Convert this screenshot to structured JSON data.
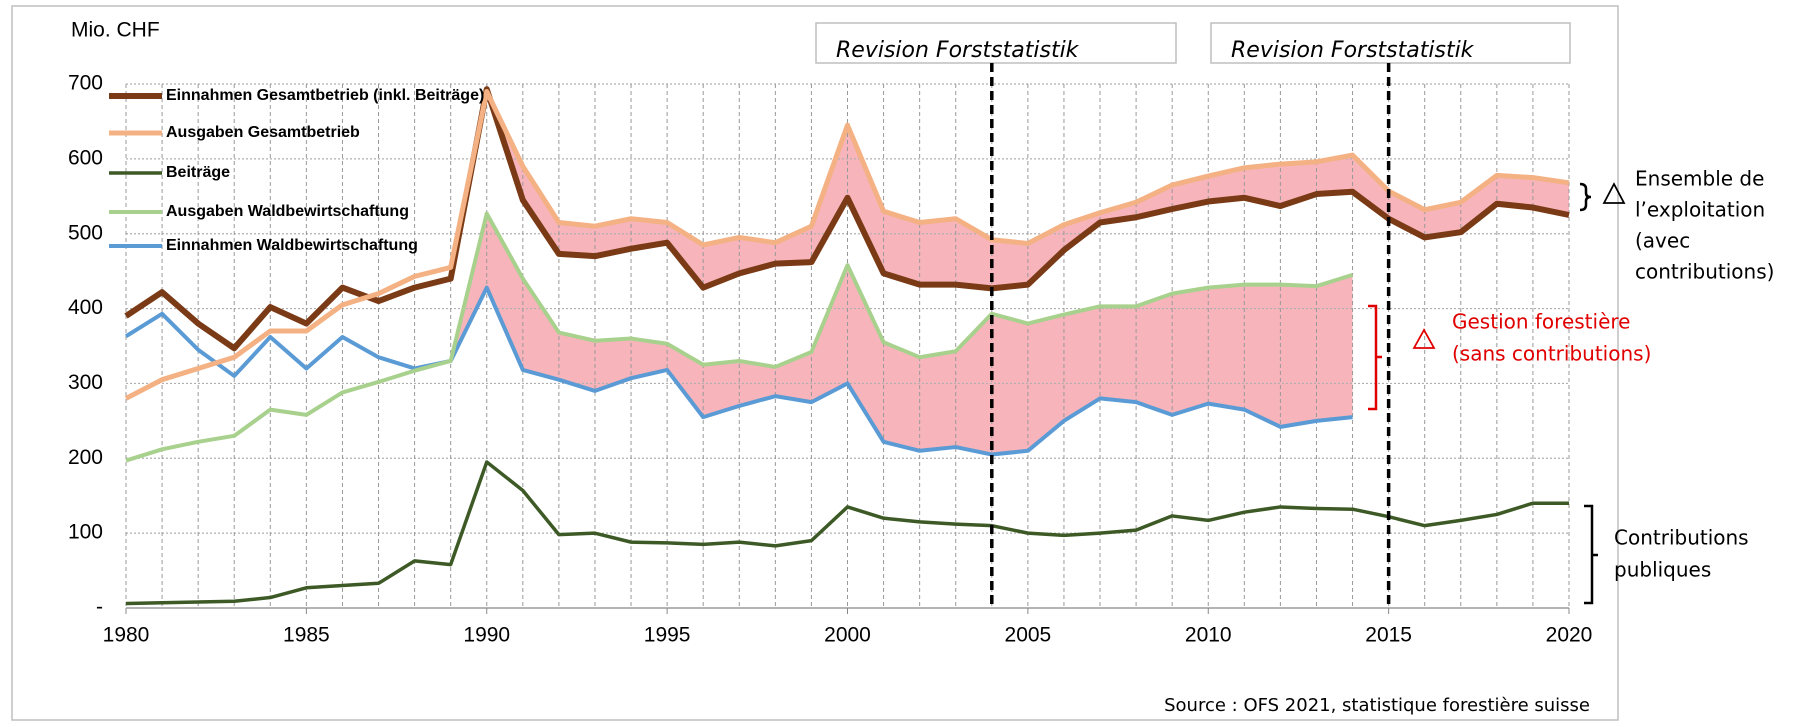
{
  "chart_data": {
    "type": "line",
    "y_label": "Mio. CHF",
    "x": [
      1980,
      1981,
      1982,
      1983,
      1984,
      1985,
      1986,
      1987,
      1988,
      1989,
      1990,
      1991,
      1992,
      1993,
      1994,
      1995,
      1996,
      1997,
      1998,
      1999,
      2000,
      2001,
      2002,
      2003,
      2004,
      2005,
      2006,
      2007,
      2008,
      2009,
      2010,
      2011,
      2012,
      2013,
      2014,
      2015,
      2016,
      2017,
      2018,
      2019,
      2020
    ],
    "xlim": [
      1980,
      2020
    ],
    "xticks": [
      1980,
      1985,
      1990,
      1995,
      2000,
      2005,
      2010,
      2015,
      2020
    ],
    "ylim": [
      0,
      700
    ],
    "yticks": [
      {
        "value": 0,
        "label": "-"
      },
      100,
      200,
      300,
      400,
      500,
      600,
      700
    ],
    "grid": true,
    "series": [
      {
        "name": "Einnahmen Gesamtbetrieb (inkl. Beiträge)",
        "color": "#7b3a16",
        "values": [
          390,
          422,
          380,
          347,
          402,
          380,
          428,
          410,
          428,
          440,
          693,
          545,
          473,
          470,
          480,
          488,
          428,
          447,
          460,
          462,
          548,
          447,
          432,
          432,
          427,
          432,
          478,
          515,
          522,
          533,
          543,
          548,
          537,
          553,
          556,
          520,
          495,
          502,
          540,
          535,
          525
        ]
      },
      {
        "name": "Ausgaben Gesamtbetrieb",
        "color": "#f4b183",
        "values": [
          280,
          305,
          320,
          335,
          370,
          370,
          405,
          420,
          443,
          455,
          690,
          590,
          515,
          510,
          520,
          515,
          485,
          495,
          488,
          510,
          645,
          530,
          515,
          520,
          492,
          487,
          512,
          528,
          542,
          565,
          577,
          588,
          593,
          596,
          605,
          557,
          532,
          542,
          578,
          575,
          568
        ]
      },
      {
        "name": "Beiträge",
        "color": "#3d5a26",
        "values": [
          6,
          7,
          8,
          9,
          14,
          27,
          30,
          33,
          63,
          58,
          195,
          157,
          98,
          100,
          88,
          87,
          85,
          88,
          83,
          90,
          135,
          120,
          115,
          112,
          110,
          100,
          97,
          100,
          104,
          123,
          117,
          128,
          135,
          133,
          132,
          122,
          110,
          117,
          125,
          140,
          140
        ]
      },
      {
        "name": "Ausgaben Waldbewirtschaftung",
        "color": "#a9d18e",
        "values": [
          197,
          212,
          222,
          230,
          265,
          258,
          288,
          302,
          317,
          330,
          527,
          440,
          368,
          357,
          360,
          353,
          325,
          330,
          322,
          342,
          458,
          355,
          335,
          343,
          393,
          380,
          392,
          403,
          403,
          420,
          428,
          432,
          432,
          430,
          445,
          null,
          null,
          null,
          null,
          null,
          null
        ]
      },
      {
        "name": "Einnahmen Waldbewirtschaftung",
        "color": "#5b9bd5",
        "values": [
          363,
          393,
          345,
          310,
          362,
          320,
          362,
          335,
          320,
          330,
          428,
          318,
          305,
          290,
          307,
          318,
          255,
          270,
          283,
          275,
          300,
          222,
          210,
          215,
          205,
          210,
          250,
          280,
          275,
          258,
          273,
          265,
          242,
          250,
          255,
          null,
          null,
          null,
          null,
          null,
          null
        ]
      }
    ],
    "revisions": [
      {
        "text": "Revision Forststatistik",
        "x": 2004
      },
      {
        "text": "Revision Forststatistik",
        "x": 2015
      }
    ],
    "annotations": {
      "ensemble": [
        "Ensemble de",
        "l’exploitation",
        "(avec",
        "contributions)"
      ],
      "gestion": [
        "Gestion forestière",
        "(sans contributions)"
      ],
      "contributions": [
        "Contributions",
        "publiques"
      ]
    },
    "source": "Source : OFS 2021, statistique forestière suisse"
  }
}
